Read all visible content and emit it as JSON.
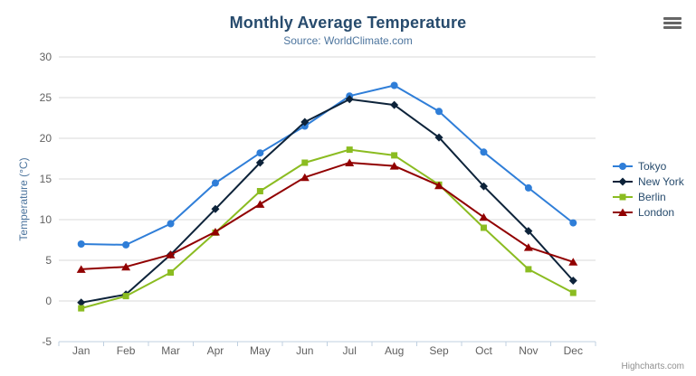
{
  "chart": {
    "credits": "Highcharts.com"
  },
  "icons": {
    "context_menu": "hamburger"
  },
  "colors": {
    "title": "#274b6d",
    "subtitle": "#4d759e",
    "axis_title": "#4d759e",
    "axis_label": "#606060",
    "axis_line": "#c0d0e0",
    "tick": "#c0d0e0",
    "grid": "#d8d8d8",
    "legend_text": "#274b6d",
    "credits": "#909090",
    "background": "#ffffff"
  },
  "chart_data": {
    "type": "line",
    "title": "Monthly Average Temperature",
    "subtitle": "Source: WorldClimate.com",
    "xlabel": "",
    "ylabel": "Temperature (°C)",
    "categories": [
      "Jan",
      "Feb",
      "Mar",
      "Apr",
      "May",
      "Jun",
      "Jul",
      "Aug",
      "Sep",
      "Oct",
      "Nov",
      "Dec"
    ],
    "ylim": [
      -5,
      30
    ],
    "ytick_step": 5,
    "yticks": [
      -5,
      0,
      5,
      10,
      15,
      20,
      25,
      30
    ],
    "grid": true,
    "legend_position": "right",
    "series": [
      {
        "name": "Tokyo",
        "color": "#2f7ed8",
        "marker": "circle",
        "values": [
          7.0,
          6.9,
          9.5,
          14.5,
          18.2,
          21.5,
          25.2,
          26.5,
          23.3,
          18.3,
          13.9,
          9.6
        ]
      },
      {
        "name": "New York",
        "color": "#0d233a",
        "marker": "diamond",
        "values": [
          -0.2,
          0.8,
          5.7,
          11.3,
          17.0,
          22.0,
          24.8,
          24.1,
          20.1,
          14.1,
          8.6,
          2.5
        ]
      },
      {
        "name": "Berlin",
        "color": "#8bbc21",
        "marker": "square",
        "values": [
          -0.9,
          0.6,
          3.5,
          8.4,
          13.5,
          17.0,
          18.6,
          17.9,
          14.3,
          9.0,
          3.9,
          1.0
        ]
      },
      {
        "name": "London",
        "color": "#910000",
        "marker": "triangle",
        "values": [
          3.9,
          4.2,
          5.7,
          8.5,
          11.9,
          15.2,
          17.0,
          16.6,
          14.2,
          10.3,
          6.6,
          4.8
        ]
      }
    ]
  }
}
